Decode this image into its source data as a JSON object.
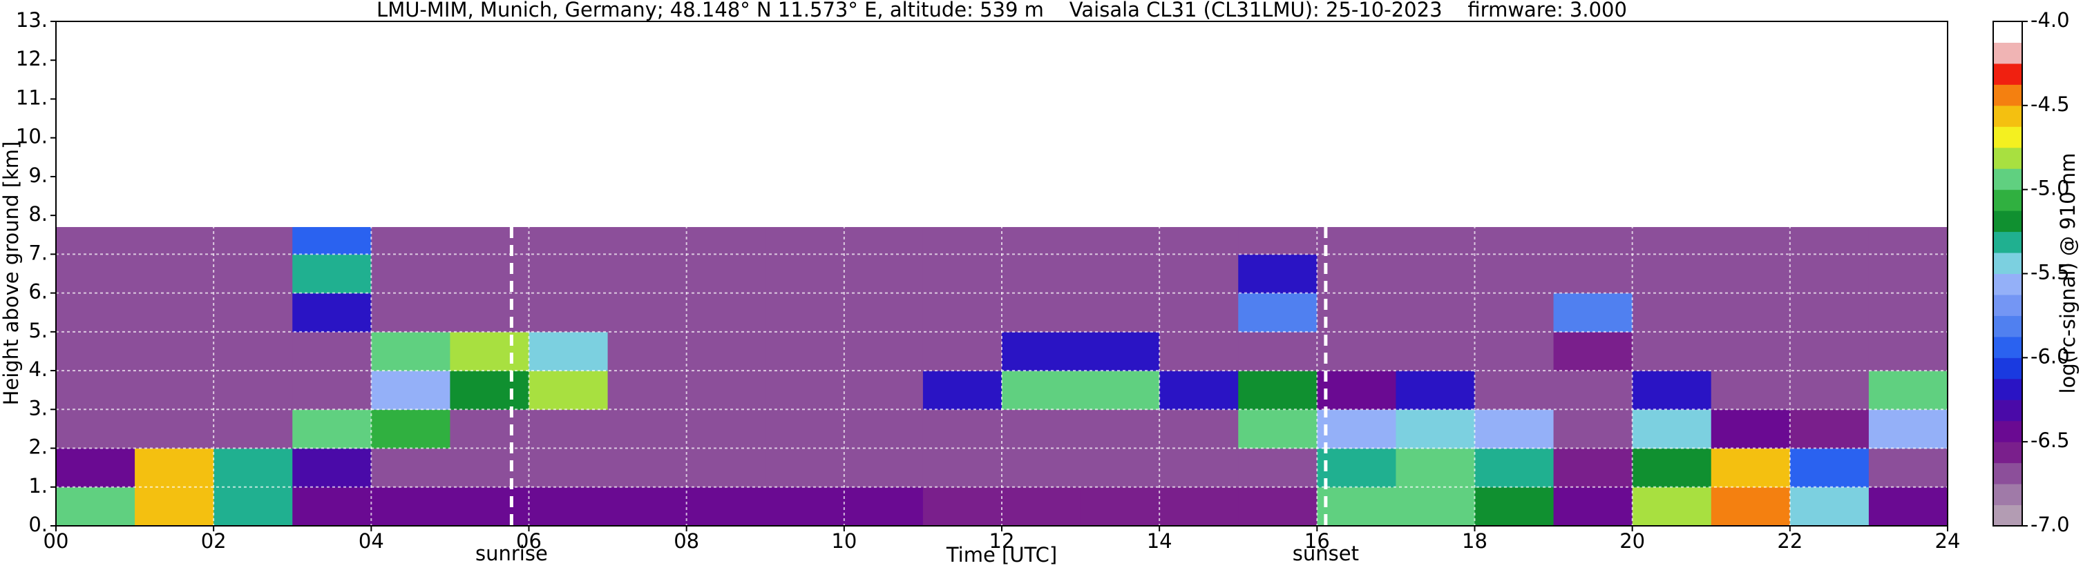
{
  "chart_data": {
    "type": "heatmap",
    "title": "LMU-MIM, Munich, Germany; 48.148° N 11.573° E, altitude: 539 m    Vaisala CL31 (CL31LMU): 25-10-2023    firmware: 3.000",
    "x_label": "Time [UTC]",
    "y_label": "Height above ground [km]",
    "colorbar_label": "log(rc-signal) @ 910 nm",
    "xlim": [
      0,
      24
    ],
    "ylim": [
      0,
      13
    ],
    "xticks": [
      {
        "value": 0,
        "label": "00"
      },
      {
        "value": 2,
        "label": "02"
      },
      {
        "value": 4,
        "label": "04"
      },
      {
        "value": 6,
        "label": "06"
      },
      {
        "value": 8,
        "label": "08"
      },
      {
        "value": 10,
        "label": "10"
      },
      {
        "value": 12,
        "label": "12"
      },
      {
        "value": 14,
        "label": "14"
      },
      {
        "value": 16,
        "label": "16"
      },
      {
        "value": 18,
        "label": "18"
      },
      {
        "value": 20,
        "label": "20"
      },
      {
        "value": 22,
        "label": "22"
      },
      {
        "value": 24,
        "label": "24"
      }
    ],
    "yticks": [
      {
        "value": 0,
        "label": "0."
      },
      {
        "value": 1,
        "label": "1."
      },
      {
        "value": 2,
        "label": "2."
      },
      {
        "value": 3,
        "label": "3."
      },
      {
        "value": 4,
        "label": "4."
      },
      {
        "value": 5,
        "label": "5."
      },
      {
        "value": 6,
        "label": "6."
      },
      {
        "value": 7,
        "label": "7."
      },
      {
        "value": 8,
        "label": "8."
      },
      {
        "value": 9,
        "label": "9."
      },
      {
        "value": 10,
        "label": "10."
      },
      {
        "value": 11,
        "label": "11."
      },
      {
        "value": 12,
        "label": "12."
      },
      {
        "value": 13,
        "label": "13."
      }
    ],
    "grid": true,
    "xbins": [
      0,
      1,
      2,
      3,
      4,
      5,
      6,
      7,
      8,
      9,
      10,
      11,
      12,
      13,
      14,
      15,
      16,
      17,
      18,
      19,
      20,
      21,
      22,
      23,
      24
    ],
    "ybins": [
      0,
      1,
      2,
      3,
      4,
      5,
      6,
      7,
      7.7
    ],
    "z": [
      [
        -5.0,
        -4.6,
        -5.3,
        -6.5,
        -6.4,
        -6.4,
        -6.4,
        -6.4,
        -6.5,
        -6.5,
        -6.5,
        -6.6,
        -6.6,
        -6.6,
        -6.6,
        -6.6,
        -5.0,
        -4.9,
        -5.2,
        -6.5,
        -4.8,
        -4.5,
        -5.5,
        -6.5
      ],
      [
        -6.4,
        -4.6,
        -5.3,
        -6.3,
        -6.7,
        -6.7,
        -6.7,
        -6.7,
        -6.7,
        -6.7,
        -6.7,
        -6.7,
        -6.7,
        -6.7,
        -6.7,
        -6.7,
        -5.3,
        -5.0,
        -5.3,
        -6.6,
        -5.2,
        -4.6,
        -6.0,
        -6.7
      ],
      [
        -6.7,
        -6.7,
        -6.7,
        -5.0,
        -5.1,
        -6.7,
        -6.7,
        -6.7,
        -6.7,
        -6.7,
        -6.7,
        -6.7,
        -6.7,
        -6.7,
        -6.7,
        -5.0,
        -5.6,
        -5.4,
        -5.6,
        -6.7,
        -5.5,
        -6.4,
        -6.6,
        -5.6
      ],
      [
        -6.7,
        -6.7,
        -6.7,
        -6.7,
        -5.6,
        -5.2,
        -4.8,
        -6.7,
        -6.7,
        -6.7,
        -6.7,
        -6.2,
        -5.0,
        -5.0,
        -6.2,
        -5.2,
        -6.4,
        -6.2,
        -6.7,
        -6.7,
        -6.2,
        -6.7,
        -6.7,
        -5.0
      ],
      [
        -6.7,
        -6.7,
        -6.7,
        -6.7,
        -5.0,
        -4.8,
        -5.4,
        -6.7,
        -6.7,
        -6.7,
        -6.7,
        -6.7,
        -6.2,
        -6.2,
        -6.7,
        -6.7,
        -6.7,
        -6.7,
        -6.7,
        -6.6,
        -6.7,
        -6.7,
        -6.7,
        -6.7
      ],
      [
        -6.7,
        -6.7,
        -6.7,
        -6.2,
        -6.7,
        -6.7,
        -6.7,
        -6.7,
        -6.7,
        -6.7,
        -6.7,
        -6.7,
        -6.7,
        -6.7,
        -6.7,
        -5.8,
        -6.7,
        -6.7,
        -6.7,
        -5.8,
        -6.7,
        -6.7,
        -6.7,
        -6.7
      ],
      [
        -6.7,
        -6.7,
        -6.7,
        -5.3,
        -6.7,
        -6.7,
        -6.7,
        -6.7,
        -6.7,
        -6.7,
        -6.7,
        -6.7,
        -6.7,
        -6.7,
        -6.7,
        -6.2,
        -6.7,
        -6.7,
        -6.7,
        -6.7,
        -6.7,
        -6.7,
        -6.7,
        -6.7
      ],
      [
        -6.7,
        -6.7,
        -6.7,
        -6.0,
        -6.7,
        -6.7,
        -6.7,
        -6.7,
        -6.7,
        -6.7,
        -6.7,
        -6.7,
        -6.7,
        -6.7,
        -6.7,
        -6.7,
        -6.7,
        -6.7,
        -6.7,
        -6.7,
        -6.7,
        -6.7,
        -6.7,
        -6.7
      ]
    ],
    "clim": [
      -7,
      -4
    ],
    "cticks": [
      {
        "value": -4,
        "label": "-4.0"
      },
      {
        "value": -4.5,
        "label": "-4.5"
      },
      {
        "value": -5,
        "label": "-5.0"
      },
      {
        "value": -5.5,
        "label": "-5.5"
      },
      {
        "value": -6,
        "label": "-6.0"
      },
      {
        "value": -6.5,
        "label": "-6.5"
      },
      {
        "value": -7,
        "label": "-7.0"
      }
    ],
    "colors": [
      "#b39cb3",
      "#a07aa8",
      "#8c4f9a",
      "#7a1f8c",
      "#6a0a92",
      "#4a0aa8",
      "#2a14c4",
      "#1a3ae0",
      "#2a62f0",
      "#5080f0",
      "#7496f4",
      "#94b0f8",
      "#7cd0e0",
      "#20b090",
      "#109030",
      "#30b040",
      "#60d080",
      "#a8e040",
      "#f4f020",
      "#f4c010",
      "#f48010",
      "#f02010",
      "#f0b4b4",
      "#ffffff"
    ],
    "annotations": [
      {
        "label": "sunrise",
        "x": 5.78
      },
      {
        "label": "sunset",
        "x": 16.11
      }
    ]
  }
}
